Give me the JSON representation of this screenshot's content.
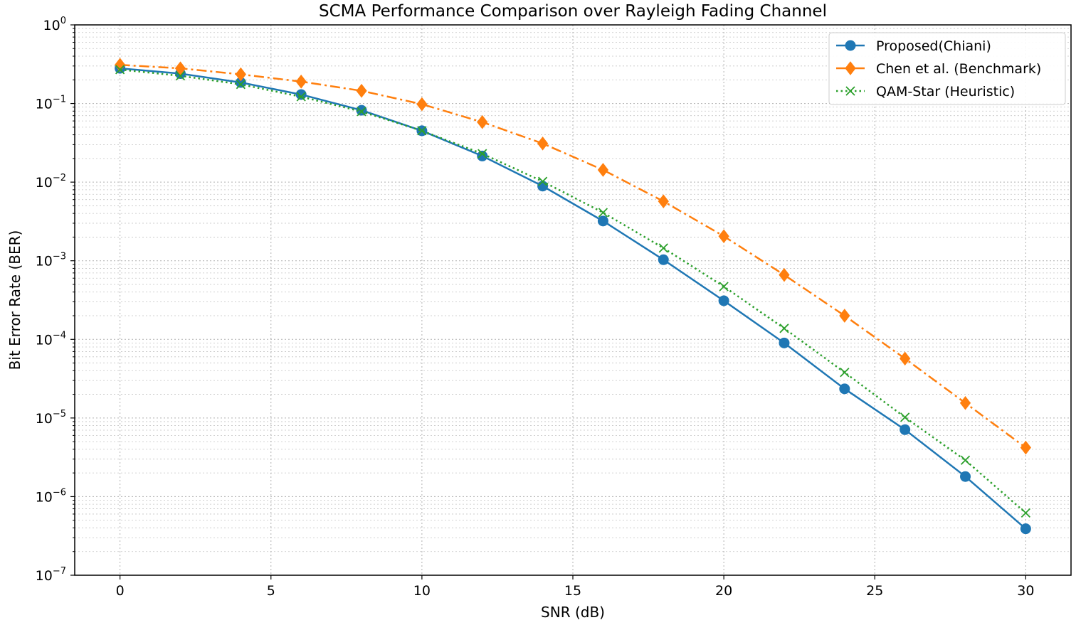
{
  "chart_data": {
    "type": "line",
    "title": "SCMA Performance Comparison over Rayleigh Fading Channel",
    "xlabel": "SNR (dB)",
    "ylabel": "Bit Error Rate (BER)",
    "xscale": "linear",
    "yscale": "log",
    "xlim": [
      -1.5,
      31.5
    ],
    "ylim": [
      1e-07,
      1
    ],
    "xticks": [
      0,
      5,
      10,
      15,
      20,
      25,
      30
    ],
    "xtick_labels": [
      "0",
      "5",
      "10",
      "15",
      "20",
      "25",
      "30"
    ],
    "ytick_exponents": [
      0,
      -1,
      -2,
      -3,
      -4,
      -5,
      -6,
      -7
    ],
    "ytick_base": "10",
    "grid": true,
    "grid_minor": true,
    "legend_position": "top-right",
    "x": [
      0,
      2,
      4,
      6,
      8,
      10,
      12,
      14,
      16,
      18,
      20,
      22,
      24,
      26,
      28,
      30
    ],
    "series": [
      {
        "name": "Proposed(Chiani)",
        "color": "#1f77b4",
        "line_style": "solid",
        "marker": "circle",
        "values": [
          0.28,
          0.24,
          0.185,
          0.13,
          0.082,
          0.045,
          0.0215,
          0.0089,
          0.0032,
          0.00103,
          0.00031,
          9e-05,
          2.35e-05,
          7.1e-06,
          1.8e-06,
          3.9e-07
        ]
      },
      {
        "name": "Chen et al. (Benchmark)",
        "color": "#ff7f0e",
        "line_style": "dashdot",
        "marker": "diamond",
        "values": [
          0.31,
          0.28,
          0.235,
          0.19,
          0.145,
          0.098,
          0.058,
          0.031,
          0.0143,
          0.0057,
          0.00205,
          0.00066,
          0.0002,
          5.7e-05,
          1.55e-05,
          4.2e-06
        ]
      },
      {
        "name": "QAM-Star (Heuristic)",
        "color": "#2ca02c",
        "line_style": "dotted",
        "marker": "x",
        "values": [
          0.27,
          0.225,
          0.175,
          0.122,
          0.079,
          0.045,
          0.023,
          0.0102,
          0.0041,
          0.00145,
          0.00047,
          0.000138,
          3.8e-05,
          1.02e-05,
          2.9e-06,
          6.2e-07
        ]
      }
    ]
  }
}
